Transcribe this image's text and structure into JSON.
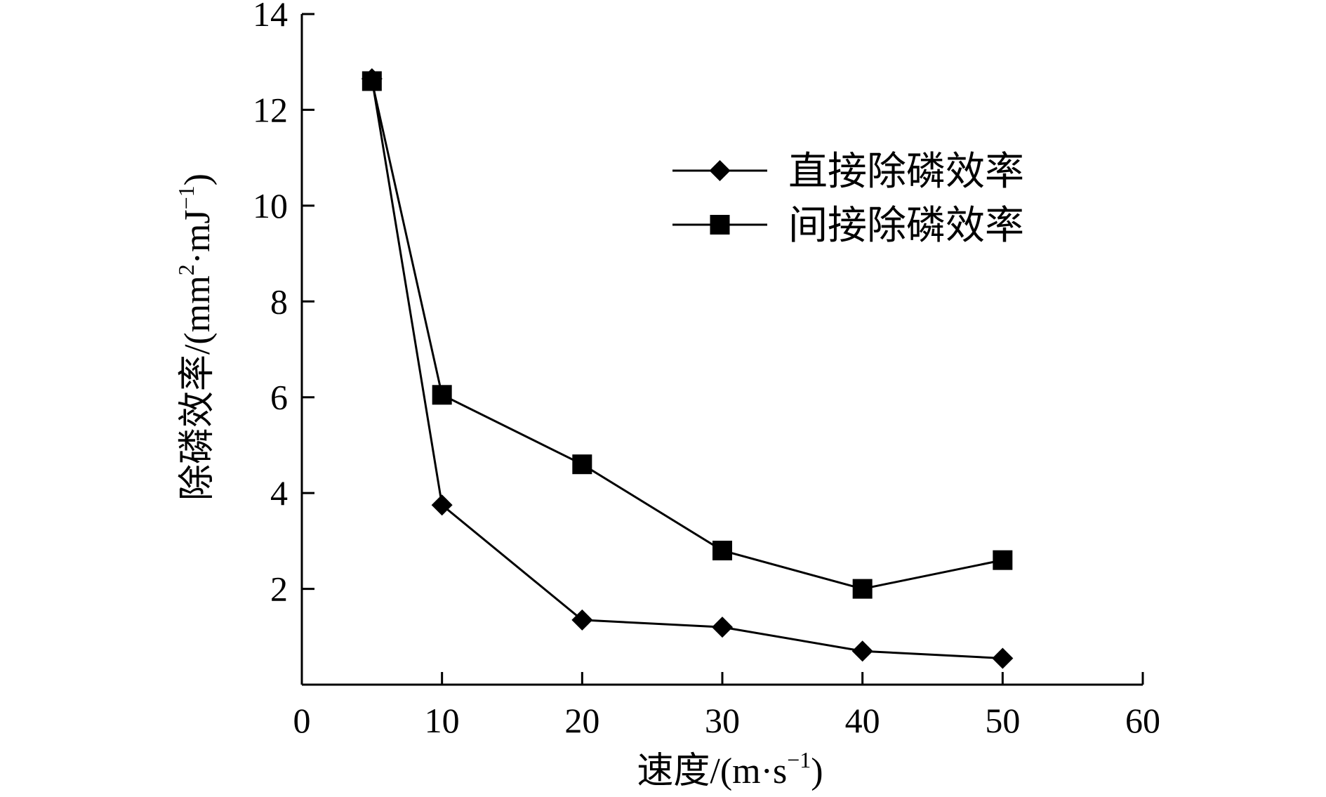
{
  "chart_data": {
    "type": "line",
    "title": "",
    "xlabel": "速度/(m·s",
    "xlabel_sup": "−1",
    "xlabel_close": ")",
    "ylabel": "除磷效率/(mm",
    "ylabel_sup1": "2",
    "ylabel_mid": "·mJ",
    "ylabel_sup2": "−1",
    "ylabel_close": ")",
    "xlim": [
      0,
      60
    ],
    "ylim": [
      0,
      14
    ],
    "xticks": [
      0,
      10,
      20,
      30,
      40,
      50,
      60
    ],
    "yticks": [
      2,
      4,
      6,
      8,
      10,
      12,
      14
    ],
    "legend_position": "top-right",
    "grid": false,
    "series": [
      {
        "name": "直接除磷效率",
        "marker": "diamond",
        "color": "#000000",
        "x": [
          5,
          10,
          20,
          30,
          40,
          50
        ],
        "y": [
          12.65,
          3.75,
          1.35,
          1.2,
          0.7,
          0.55
        ]
      },
      {
        "name": "间接除磷效率",
        "marker": "square",
        "color": "#000000",
        "x": [
          5,
          10,
          20,
          30,
          40,
          50
        ],
        "y": [
          12.6,
          6.05,
          4.6,
          2.8,
          2.0,
          2.6
        ]
      }
    ]
  }
}
